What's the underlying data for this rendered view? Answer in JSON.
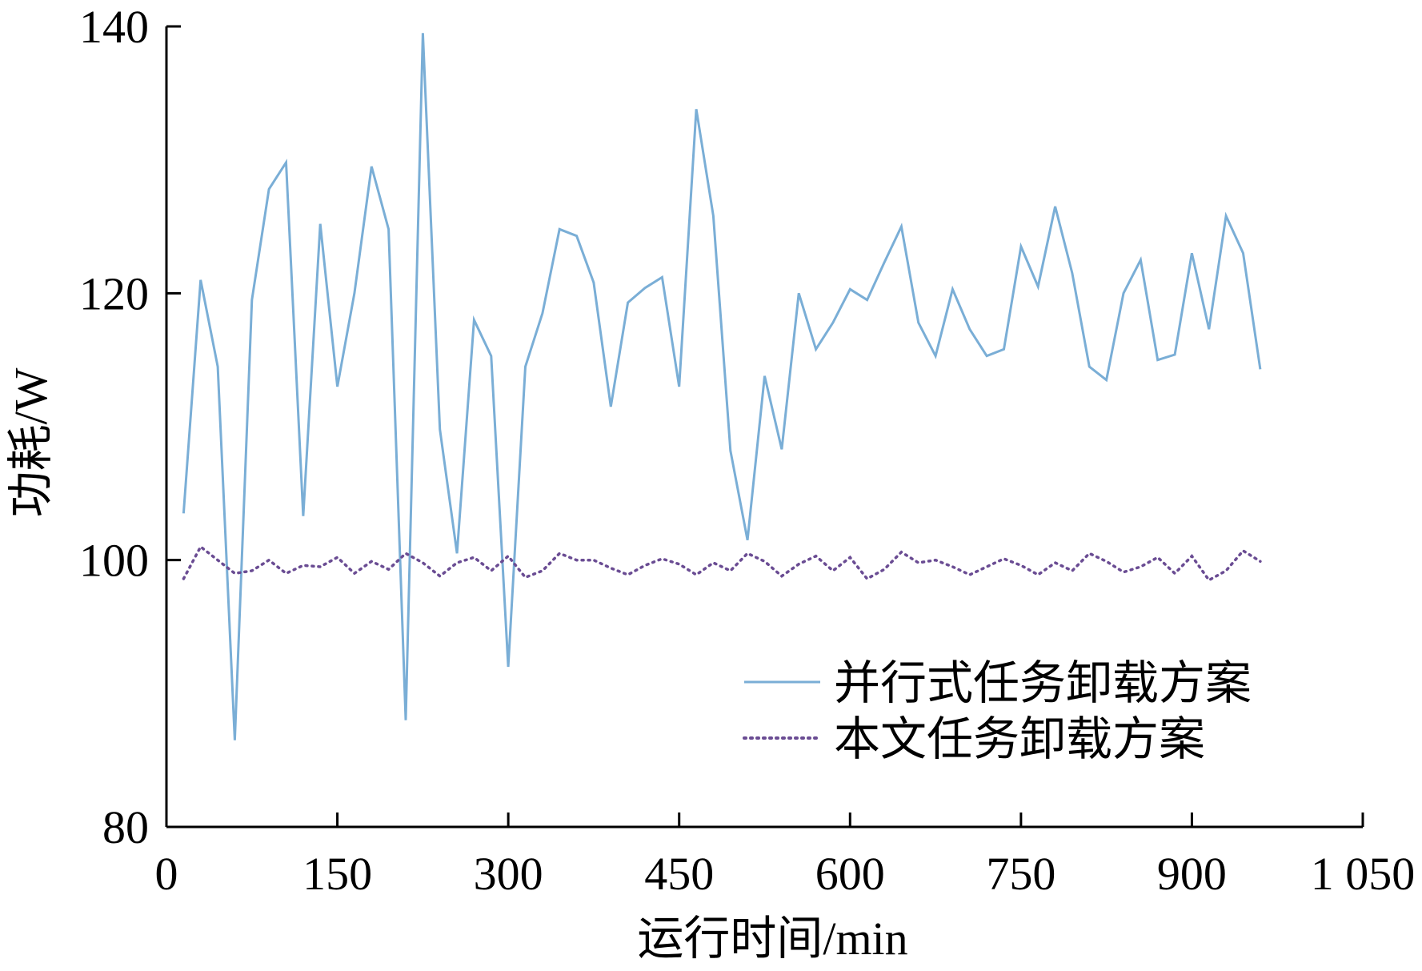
{
  "chart_data": {
    "type": "line",
    "xlabel": "运行时间/min",
    "ylabel": "功耗/W",
    "xlim": [
      0,
      1050
    ],
    "ylim": [
      80,
      140
    ],
    "x_ticks": [
      0,
      150,
      300,
      450,
      600,
      750,
      900,
      1050
    ],
    "x_tick_labels": [
      "0",
      "150",
      "300",
      "450",
      "600",
      "750",
      "900",
      "1 050"
    ],
    "y_ticks": [
      80,
      100,
      120,
      140
    ],
    "y_tick_labels": [
      "80",
      "100",
      "120",
      "140"
    ],
    "grid": false,
    "legend_position": "lower-right",
    "x": [
      15,
      30,
      45,
      60,
      75,
      90,
      105,
      120,
      135,
      150,
      165,
      180,
      195,
      210,
      225,
      240,
      255,
      270,
      285,
      300,
      315,
      330,
      345,
      360,
      375,
      390,
      405,
      420,
      435,
      450,
      465,
      480,
      495,
      510,
      525,
      540,
      555,
      570,
      585,
      600,
      615,
      630,
      645,
      660,
      675,
      690,
      705,
      720,
      735,
      750,
      765,
      780,
      795,
      810,
      825,
      840,
      855,
      870,
      885,
      900,
      915,
      930,
      945,
      960
    ],
    "series": [
      {
        "name": "并行式任务卸载方案",
        "color": "#7aaed6",
        "style": "solid",
        "values": [
          103.5,
          121,
          114.5,
          86.5,
          119.5,
          127.8,
          129.8,
          103.3,
          125.2,
          113,
          120,
          129.5,
          124.8,
          88,
          139.5,
          109.8,
          100.5,
          118,
          115.3,
          92,
          114.5,
          118.5,
          124.8,
          124.3,
          120.8,
          111.5,
          119.3,
          120.4,
          121.2,
          113,
          133.8,
          125.8,
          108.2,
          101.5,
          113.8,
          108.3,
          120,
          115.8,
          117.8,
          120.3,
          119.5,
          122.3,
          125,
          117.8,
          115.3,
          120.3,
          117.3,
          115.3,
          115.8,
          123.5,
          120.5,
          126.5,
          121.5,
          114.5,
          113.5,
          120,
          122.5,
          115,
          115.4,
          123,
          117.3,
          125.8,
          123,
          114.3
        ]
      },
      {
        "name": "本文任务卸载方案",
        "color": "#6a4c93",
        "style": "dotted",
        "values": [
          98.6,
          101,
          100,
          99,
          99.2,
          100,
          99,
          99.6,
          99.5,
          100.2,
          99,
          99.9,
          99.3,
          100.5,
          99.8,
          98.8,
          99.8,
          100.2,
          99.2,
          100.3,
          98.7,
          99.2,
          100.5,
          100,
          100,
          99.4,
          98.9,
          99.6,
          100.1,
          99.7,
          98.9,
          99.8,
          99.2,
          100.5,
          99.9,
          98.8,
          99.7,
          100.3,
          99.2,
          100.2,
          98.6,
          99.3,
          100.6,
          99.8,
          100,
          99.5,
          98.9,
          99.5,
          100.1,
          99.6,
          98.9,
          99.8,
          99.2,
          100.5,
          99.9,
          99.1,
          99.5,
          100.2,
          99,
          100.3,
          98.5,
          99.2,
          100.7,
          99.9
        ]
      }
    ]
  }
}
